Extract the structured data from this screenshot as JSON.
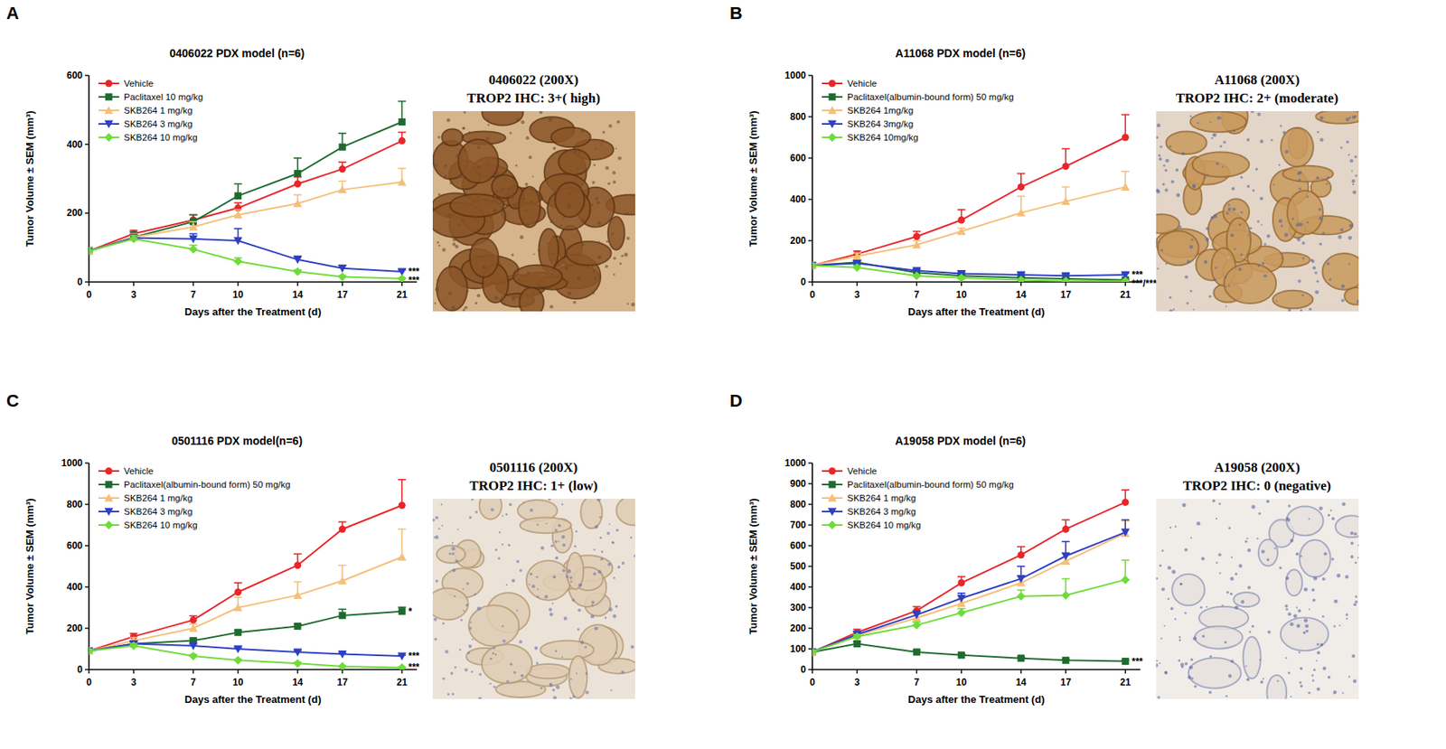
{
  "chart_data": [
    {
      "type": "line",
      "panel": "A",
      "title": "0406022 PDX model (n=6)",
      "x_label": "Days after the Treatment (d)",
      "y_label": "Tumor Volume ± SEM (mm³)",
      "x": [
        0,
        3,
        7,
        10,
        14,
        17,
        21
      ],
      "xlim": [
        0,
        22
      ],
      "xticks": [
        0,
        3,
        7,
        10,
        14,
        17,
        21
      ],
      "ylim": [
        0,
        600
      ],
      "yticks": [
        0,
        200,
        400,
        600
      ],
      "legend": "upper left",
      "image_caption": [
        "0406022 (200X)",
        "TROP2 IHC: 3+( high)"
      ],
      "series": [
        {
          "name": "Vehicle",
          "color": "#e8262a",
          "marker": "circle",
          "values": [
            90,
            140,
            180,
            215,
            285,
            328,
            410
          ],
          "errors": [
            10,
            10,
            15,
            15,
            20,
            20,
            25
          ]
        },
        {
          "name": "Paclitaxel 10 mg/kg",
          "color": "#1e6b2e",
          "marker": "square",
          "values": [
            90,
            130,
            175,
            250,
            315,
            392,
            465
          ],
          "errors": [
            10,
            15,
            20,
            35,
            45,
            40,
            60
          ]
        },
        {
          "name": "SKB264 1 mg/kg",
          "color": "#f5bf7a",
          "marker": "triangle-up",
          "values": [
            90,
            130,
            160,
            195,
            228,
            268,
            290
          ],
          "errors": [
            10,
            10,
            15,
            15,
            25,
            25,
            40
          ]
        },
        {
          "name": "SKB264 3 mg/kg",
          "color": "#2e3fc4",
          "marker": "triangle-down",
          "values": [
            90,
            128,
            125,
            120,
            65,
            40,
            30
          ],
          "errors": [
            10,
            10,
            15,
            35,
            10,
            8,
            5
          ],
          "significance": "***"
        },
        {
          "name": "SKB264 10 mg/kg",
          "color": "#6fdc3a",
          "marker": "diamond",
          "values": [
            90,
            125,
            95,
            60,
            30,
            15,
            10
          ],
          "errors": [
            10,
            10,
            12,
            10,
            5,
            3,
            2
          ],
          "significance": "***"
        }
      ]
    },
    {
      "type": "line",
      "panel": "B",
      "title": "A11068 PDX model (n=6)",
      "x_label": "Days after the Treatment (d)",
      "y_label": "Tumor Volume ± SEM (mm³)",
      "x": [
        0,
        3,
        7,
        10,
        14,
        17,
        21
      ],
      "xlim": [
        0,
        22
      ],
      "xticks": [
        0,
        3,
        7,
        10,
        14,
        17,
        21
      ],
      "ylim": [
        0,
        1000
      ],
      "yticks": [
        0,
        200,
        400,
        600,
        800,
        1000
      ],
      "legend": "upper left",
      "image_caption": [
        "A11068 (200X)",
        "TROP2 IHC: 2+ (moderate)"
      ],
      "series": [
        {
          "name": "Vehicle",
          "color": "#e8262a",
          "marker": "circle",
          "values": [
            80,
            135,
            220,
            300,
            460,
            560,
            700
          ],
          "errors": [
            10,
            15,
            25,
            50,
            65,
            85,
            110
          ]
        },
        {
          "name": "Paclitaxel(albumin-bound form) 50 mg/kg",
          "color": "#1e6b2e",
          "marker": "square",
          "values": [
            80,
            95,
            45,
            30,
            20,
            15,
            10
          ],
          "errors": [
            10,
            10,
            8,
            5,
            5,
            3,
            3
          ]
        },
        {
          "name": "SKB264 1mg/kg",
          "color": "#f5bf7a",
          "marker": "triangle-up",
          "values": [
            80,
            125,
            180,
            245,
            335,
            390,
            460
          ],
          "errors": [
            10,
            15,
            20,
            15,
            80,
            70,
            75
          ]
        },
        {
          "name": "SKB264 3mg/kg",
          "color": "#2e3fc4",
          "marker": "triangle-down",
          "values": [
            80,
            90,
            55,
            40,
            35,
            30,
            35
          ],
          "errors": [
            10,
            10,
            8,
            8,
            8,
            8,
            8
          ],
          "significance": "***"
        },
        {
          "name": "SKB264 10mg/kg",
          "color": "#6fdc3a",
          "marker": "diamond",
          "values": [
            80,
            70,
            30,
            20,
            10,
            5,
            5
          ],
          "errors": [
            10,
            10,
            5,
            5,
            3,
            2,
            2
          ],
          "significance": "***/***"
        }
      ]
    },
    {
      "type": "line",
      "panel": "C",
      "title": "0501116 PDX model(n=6)",
      "x_label": "Days after the Treatment (d)",
      "y_label": "Tumor Volume ± SEM (mm³)",
      "x": [
        0,
        3,
        7,
        10,
        14,
        17,
        21
      ],
      "xlim": [
        0,
        22
      ],
      "xticks": [
        0,
        3,
        7,
        10,
        14,
        17,
        21
      ],
      "ylim": [
        0,
        1000
      ],
      "yticks": [
        0,
        200,
        400,
        600,
        800,
        1000
      ],
      "legend": "upper left",
      "image_caption": [
        "0501116 (200X)",
        "TROP2 IHC: 1+ (low)"
      ],
      "series": [
        {
          "name": "Vehicle",
          "color": "#e8262a",
          "marker": "circle",
          "values": [
            90,
            160,
            240,
            375,
            505,
            680,
            795
          ],
          "errors": [
            10,
            15,
            20,
            45,
            55,
            35,
            125
          ]
        },
        {
          "name": "Paclitaxel(albumin-bound form) 50 mg/kg",
          "color": "#1e6b2e",
          "marker": "square",
          "values": [
            90,
            125,
            140,
            180,
            210,
            262,
            282
          ],
          "errors": [
            10,
            10,
            10,
            10,
            10,
            30,
            20
          ],
          "significance": "*"
        },
        {
          "name": "SKB264 1 mg/kg",
          "color": "#f5bf7a",
          "marker": "triangle-up",
          "values": [
            90,
            140,
            200,
            300,
            360,
            430,
            545
          ],
          "errors": [
            10,
            15,
            20,
            50,
            65,
            75,
            135
          ]
        },
        {
          "name": "SKB264 3 mg/kg",
          "color": "#2e3fc4",
          "marker": "triangle-down",
          "values": [
            90,
            125,
            115,
            100,
            85,
            75,
            65
          ],
          "errors": [
            10,
            10,
            10,
            8,
            8,
            5,
            5
          ],
          "significance": "***"
        },
        {
          "name": "SKB264 10 mg/kg",
          "color": "#6fdc3a",
          "marker": "diamond",
          "values": [
            90,
            115,
            65,
            45,
            30,
            15,
            10
          ],
          "errors": [
            10,
            10,
            8,
            5,
            5,
            3,
            3
          ],
          "significance": "***"
        }
      ]
    },
    {
      "type": "line",
      "panel": "D",
      "title": "A19058 PDX model (n=6)",
      "x_label": "Days after the Treatment (d)",
      "y_label": "Tumor Volume ± SEM (mm³)",
      "x": [
        0,
        3,
        7,
        10,
        14,
        17,
        21
      ],
      "xlim": [
        0,
        22
      ],
      "xticks": [
        0,
        3,
        7,
        10,
        14,
        17,
        21
      ],
      "ylim": [
        0,
        1000
      ],
      "yticks": [
        0,
        100,
        200,
        300,
        400,
        500,
        600,
        700,
        800,
        900,
        1000
      ],
      "legend": "upper left",
      "image_caption": [
        "A19058 (200X)",
        "TROP2 IHC: 0 (negative)"
      ],
      "series": [
        {
          "name": "Vehicle",
          "color": "#e8262a",
          "marker": "circle",
          "values": [
            85,
            180,
            285,
            420,
            555,
            680,
            810
          ],
          "errors": [
            10,
            15,
            20,
            30,
            40,
            45,
            60
          ]
        },
        {
          "name": "Paclitaxel(albumin-bound form) 50 mg/kg",
          "color": "#1e6b2e",
          "marker": "square",
          "values": [
            85,
            125,
            85,
            70,
            55,
            45,
            40
          ],
          "errors": [
            10,
            10,
            8,
            5,
            5,
            5,
            5
          ],
          "significance": "***"
        },
        {
          "name": "SKB264 1 mg/kg",
          "color": "#f5bf7a",
          "marker": "triangle-up",
          "values": [
            85,
            165,
            250,
            320,
            420,
            525,
            660
          ],
          "errors": [
            10,
            15,
            20,
            25,
            30,
            40,
            60
          ]
        },
        {
          "name": "SKB264 3 mg/kg",
          "color": "#2e3fc4",
          "marker": "triangle-down",
          "values": [
            85,
            170,
            265,
            345,
            440,
            550,
            665
          ],
          "errors": [
            10,
            15,
            20,
            25,
            60,
            70,
            60
          ]
        },
        {
          "name": "SKB264 10 mg/kg",
          "color": "#6fdc3a",
          "marker": "diamond",
          "values": [
            85,
            160,
            215,
            275,
            355,
            360,
            435
          ],
          "errors": [
            10,
            10,
            15,
            20,
            30,
            80,
            95
          ]
        }
      ]
    }
  ]
}
